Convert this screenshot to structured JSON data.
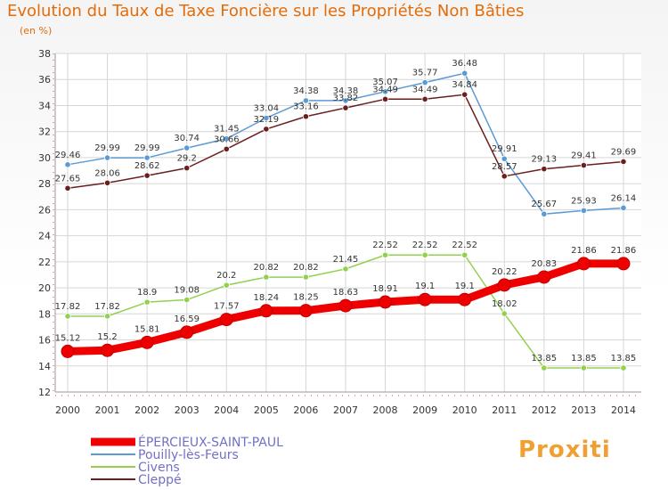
{
  "title": "Evolution du Taux de Taxe Foncière sur les Propriétés Non Bâties",
  "subtitle": "(en %)",
  "logo": "Proxiti",
  "chart_data": {
    "type": "line",
    "title": "Evolution du Taux de Taxe Foncière sur les Propriétés Non Bâties",
    "ylabel": "(en %)",
    "xlabel": "",
    "ylim": [
      12,
      38
    ],
    "yticks": [
      12,
      14,
      16,
      18,
      20,
      22,
      24,
      26,
      28,
      30,
      32,
      34,
      36,
      38
    ],
    "grid": true,
    "categories": [
      "2000",
      "2001",
      "2002",
      "2003",
      "2004",
      "2005",
      "2006",
      "2007",
      "2008",
      "2009",
      "2010",
      "2011",
      "2012",
      "2013",
      "2014"
    ],
    "series": [
      {
        "name": "Pouilly-lès-Feurs",
        "color": "#5b9bd5",
        "values": [
          29.46,
          29.99,
          29.99,
          30.74,
          31.45,
          33.04,
          34.38,
          34.38,
          35.07,
          35.77,
          36.48,
          29.91,
          25.67,
          25.93,
          26.14
        ],
        "labels": [
          "29.46",
          "29.99",
          "29.99",
          "30.74",
          "31.45",
          "33.04",
          "34.38",
          "34.38",
          "35.07",
          "35.77",
          "36.48",
          "29.91",
          "25.67",
          "25.93",
          "26.14"
        ]
      },
      {
        "name": "Cleppé",
        "color": "#6b1e1e",
        "values": [
          27.65,
          28.06,
          28.62,
          29.2,
          30.66,
          32.19,
          33.16,
          33.82,
          34.49,
          34.49,
          34.84,
          28.57,
          29.13,
          29.41,
          29.69
        ],
        "labels": [
          "27.65",
          "28.06",
          "28.62",
          "29.2",
          "30.66",
          "32.19",
          "33.16",
          "33.82",
          "34.49",
          "34.49",
          "34.84",
          "28.57",
          "29.13",
          "29.41",
          "29.69"
        ]
      },
      {
        "name": "Civens",
        "color": "#92d050",
        "values": [
          17.82,
          17.82,
          18.9,
          19.08,
          20.2,
          20.82,
          20.82,
          21.45,
          22.52,
          22.52,
          22.52,
          18.02,
          13.85,
          13.85,
          13.85
        ],
        "labels": [
          "17.82",
          "17.82",
          "18.9",
          "19.08",
          "20.2",
          "20.82",
          "20.82",
          "21.45",
          "22.52",
          "22.52",
          "22.52",
          "18.02",
          "13.85",
          "13.85",
          "13.85"
        ]
      },
      {
        "name": "ÉPERCIEUX-SAINT-PAUL",
        "color": "#ee0000",
        "values": [
          15.12,
          15.2,
          15.81,
          16.59,
          17.57,
          18.24,
          18.25,
          18.63,
          18.91,
          19.1,
          19.1,
          20.22,
          20.83,
          21.86,
          21.86
        ],
        "labels": [
          "15.12",
          "15.2",
          "15.81",
          "16.59",
          "17.57",
          "18.24",
          "18.25",
          "18.63",
          "18.91",
          "19.1",
          "19.1",
          "20.22",
          "20.83",
          "21.86",
          "21.86"
        ]
      }
    ],
    "legend": {
      "position": "bottom-left",
      "entries": [
        "ÉPERCIEUX-SAINT-PAUL",
        "Pouilly-lès-Feurs",
        "Civens",
        "Cleppé"
      ]
    }
  }
}
